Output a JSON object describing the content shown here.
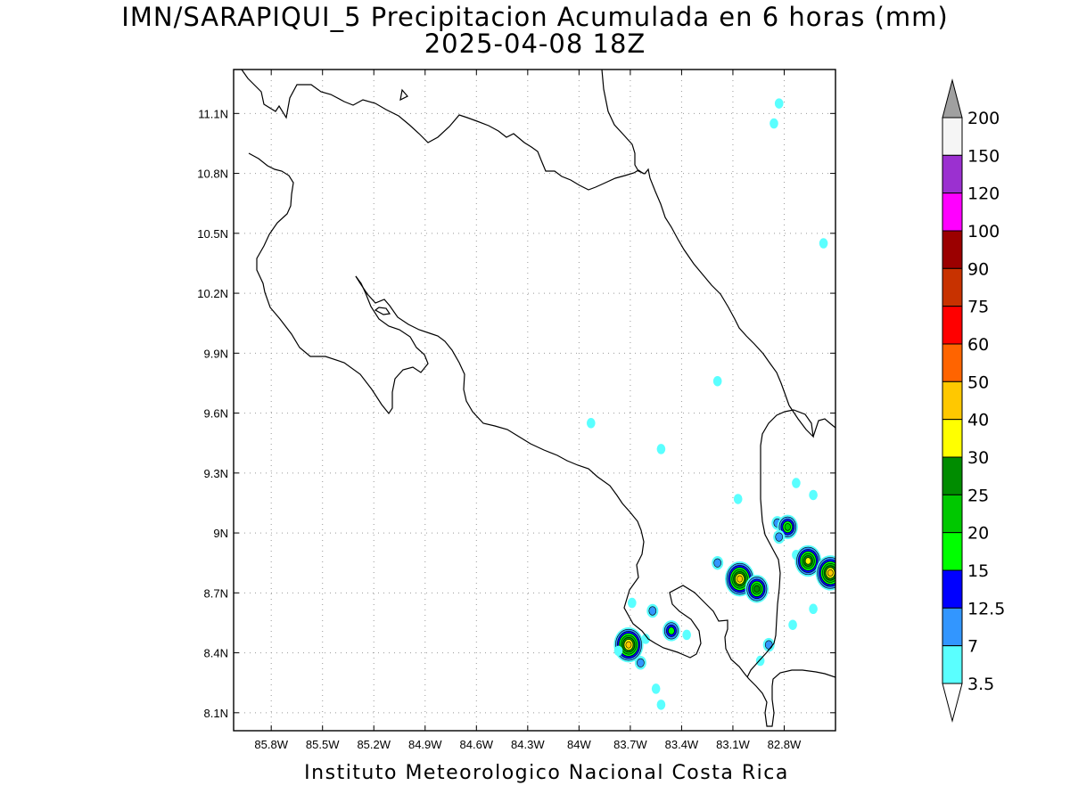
{
  "title": "IMN/SARAPIQUI_5 Precipitacion Acumulada en 6 horas (mm)",
  "subtitle": "2025-04-08 18Z",
  "credit": "Instituto Meteorologico Nacional Costa Rica",
  "map": {
    "lon_range": [
      -86.02,
      -82.5
    ],
    "lat_range": [
      8.01,
      11.32
    ],
    "x_ticks": [
      {
        "lon": -85.8,
        "label": "85.8W"
      },
      {
        "lon": -85.5,
        "label": "85.5W"
      },
      {
        "lon": -85.2,
        "label": "85.2W"
      },
      {
        "lon": -84.9,
        "label": "84.9W"
      },
      {
        "lon": -84.6,
        "label": "84.6W"
      },
      {
        "lon": -84.3,
        "label": "84.3W"
      },
      {
        "lon": -84.0,
        "label": "84W"
      },
      {
        "lon": -83.7,
        "label": "83.7W"
      },
      {
        "lon": -83.4,
        "label": "83.4W"
      },
      {
        "lon": -83.1,
        "label": "83.1W"
      },
      {
        "lon": -82.8,
        "label": "82.8W"
      }
    ],
    "y_ticks": [
      {
        "lat": 11.1,
        "label": "11.1N"
      },
      {
        "lat": 10.8,
        "label": "10.8N"
      },
      {
        "lat": 10.5,
        "label": "10.5N"
      },
      {
        "lat": 10.2,
        "label": "10.2N"
      },
      {
        "lat": 9.9,
        "label": "9.9N"
      },
      {
        "lat": 9.6,
        "label": "9.6N"
      },
      {
        "lat": 9.3,
        "label": "9.3N"
      },
      {
        "lat": 9.0,
        "label": "9N"
      },
      {
        "lat": 8.7,
        "label": "8.7N"
      },
      {
        "lat": 8.4,
        "label": "8.4N"
      },
      {
        "lat": 8.1,
        "label": "8.1N"
      }
    ],
    "grid": "dotted",
    "precip_cells": [
      {
        "lon": -82.86,
        "lat": 11.05,
        "mm": 5
      },
      {
        "lon": -82.83,
        "lat": 11.15,
        "mm": 4
      },
      {
        "lon": -82.57,
        "lat": 10.45,
        "mm": 4
      },
      {
        "lon": -83.19,
        "lat": 9.76,
        "mm": 4
      },
      {
        "lon": -83.93,
        "lat": 9.55,
        "mm": 4
      },
      {
        "lon": -83.52,
        "lat": 9.42,
        "mm": 4
      },
      {
        "lon": -83.07,
        "lat": 9.17,
        "mm": 5
      },
      {
        "lon": -82.84,
        "lat": 9.05,
        "mm": 12
      },
      {
        "lon": -82.78,
        "lat": 9.03,
        "mm": 22
      },
      {
        "lon": -82.83,
        "lat": 8.98,
        "mm": 7
      },
      {
        "lon": -82.73,
        "lat": 9.25,
        "mm": 4
      },
      {
        "lon": -82.63,
        "lat": 9.19,
        "mm": 4
      },
      {
        "lon": -82.73,
        "lat": 8.89,
        "mm": 4
      },
      {
        "lon": -82.66,
        "lat": 8.86,
        "mm": 30
      },
      {
        "lon": -82.53,
        "lat": 8.8,
        "mm": 40
      },
      {
        "lon": -83.19,
        "lat": 8.85,
        "mm": 12
      },
      {
        "lon": -83.06,
        "lat": 8.77,
        "mm": 40
      },
      {
        "lon": -82.96,
        "lat": 8.72,
        "mm": 25
      },
      {
        "lon": -82.63,
        "lat": 8.62,
        "mm": 4
      },
      {
        "lon": -82.75,
        "lat": 8.54,
        "mm": 4
      },
      {
        "lon": -82.89,
        "lat": 8.44,
        "mm": 12
      },
      {
        "lon": -82.94,
        "lat": 8.36,
        "mm": 4
      },
      {
        "lon": -83.57,
        "lat": 8.61,
        "mm": 12
      },
      {
        "lon": -83.46,
        "lat": 8.51,
        "mm": 15
      },
      {
        "lon": -83.37,
        "lat": 8.49,
        "mm": 5
      },
      {
        "lon": -83.69,
        "lat": 8.65,
        "mm": 5
      },
      {
        "lon": -83.71,
        "lat": 8.44,
        "mm": 40
      },
      {
        "lon": -83.64,
        "lat": 8.35,
        "mm": 12
      },
      {
        "lon": -83.77,
        "lat": 8.41,
        "mm": 4
      },
      {
        "lon": -83.61,
        "lat": 8.47,
        "mm": 5
      },
      {
        "lon": -83.52,
        "lat": 8.14,
        "mm": 5
      },
      {
        "lon": -83.55,
        "lat": 8.22,
        "mm": 4
      }
    ]
  },
  "colorbar": {
    "levels": [
      "200",
      "150",
      "120",
      "100",
      "90",
      "75",
      "60",
      "50",
      "40",
      "30",
      "25",
      "20",
      "15",
      "12.5",
      "7",
      "3.5"
    ],
    "colors": [
      "#a0a0a0",
      "#f5f5f5",
      "#9b30d0",
      "#ff00ff",
      "#9b0000",
      "#c83200",
      "#ff0000",
      "#ff6400",
      "#ffc800",
      "#ffff00",
      "#008c00",
      "#00c800",
      "#00ff00",
      "#0000ff",
      "#3296ff",
      "#5affff",
      "#ffffff"
    ]
  }
}
